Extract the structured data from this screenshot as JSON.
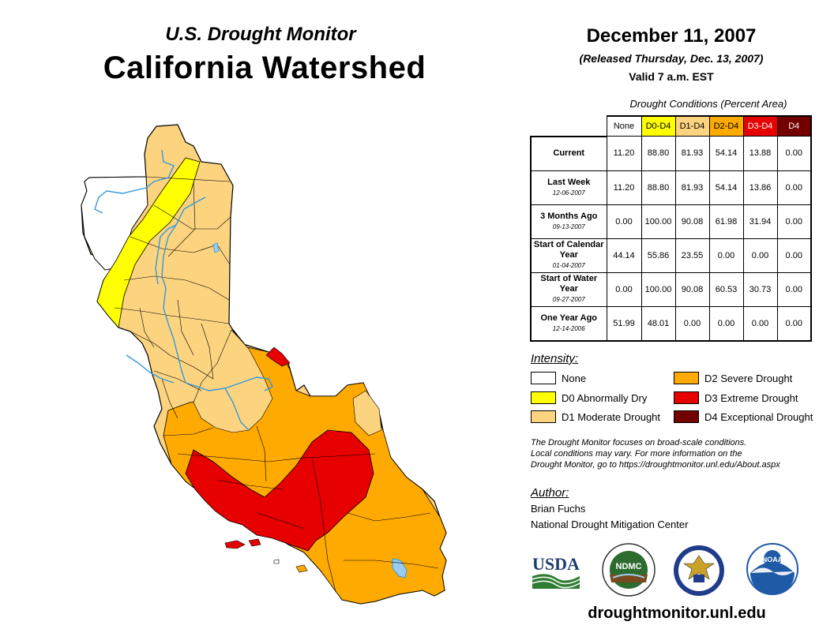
{
  "header": {
    "subtitle": "U.S. Drought Monitor",
    "title": "California Watershed",
    "date": "December 11, 2007",
    "released": "(Released Thursday, Dec. 13, 2007)",
    "valid": "Valid 7 a.m. EST"
  },
  "table": {
    "caption": "Drought Conditions (Percent Area)",
    "columns": [
      "None",
      "D0-D4",
      "D1-D4",
      "D2-D4",
      "D3-D4",
      "D4"
    ],
    "rows": [
      {
        "label": "Current",
        "date": "",
        "values": [
          "11.20",
          "88.80",
          "81.93",
          "54.14",
          "13.88",
          "0.00"
        ]
      },
      {
        "label": "Last Week",
        "date": "12-06-2007",
        "values": [
          "11.20",
          "88.80",
          "81.93",
          "54.14",
          "13.86",
          "0.00"
        ]
      },
      {
        "label": "3 Months Ago",
        "date": "09-13-2007",
        "values": [
          "0.00",
          "100.00",
          "90.08",
          "61.98",
          "31.94",
          "0.00"
        ]
      },
      {
        "label": "Start of Calendar Year",
        "date": "01-04-2007",
        "values": [
          "44.14",
          "55.86",
          "23.55",
          "0.00",
          "0.00",
          "0.00"
        ]
      },
      {
        "label": "Start of Water Year",
        "date": "09-27-2007",
        "values": [
          "0.00",
          "100.00",
          "90.08",
          "60.53",
          "30.73",
          "0.00"
        ]
      },
      {
        "label": "One Year Ago",
        "date": "12-14-2006",
        "values": [
          "51.99",
          "48.01",
          "0.00",
          "0.00",
          "0.00",
          "0.00"
        ]
      }
    ]
  },
  "legend": {
    "heading": "Intensity:",
    "items": [
      {
        "label": "None",
        "color": "#ffffff"
      },
      {
        "label": "D0 Abnormally Dry",
        "color": "#ffff00"
      },
      {
        "label": "D1 Moderate Drought",
        "color": "#fcd37f"
      },
      {
        "label": "D2 Severe Drought",
        "color": "#ffaa00"
      },
      {
        "label": "D3 Extreme Drought",
        "color": "#e60000"
      },
      {
        "label": "D4 Exceptional Drought",
        "color": "#730000"
      }
    ]
  },
  "note": {
    "line1": "The Drought Monitor focuses on broad-scale conditions.",
    "line2": "Local conditions may vary. For more information on the",
    "line3": "Drought Monitor, go to https://droughtmonitor.unl.edu/About.aspx"
  },
  "author": {
    "heading": "Author:",
    "name": "Brian Fuchs",
    "org": "National Drought Mitigation Center"
  },
  "logos": {
    "usda": "USDA",
    "ndmc": "NDMC",
    "noaa": "NOAA"
  },
  "footer": {
    "url": "droughtmonitor.unl.edu"
  },
  "colors": {
    "none": "#ffffff",
    "d0": "#ffff00",
    "d1": "#fcd37f",
    "d2": "#ffaa00",
    "d3": "#e60000",
    "d4": "#730000",
    "river": "#3399dd"
  }
}
